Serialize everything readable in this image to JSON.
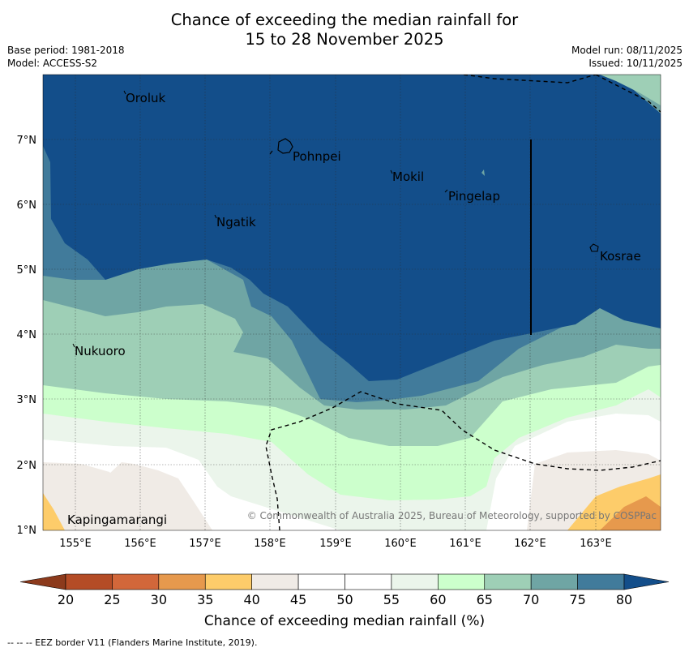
{
  "title_line1": "Chance of exceeding the median rainfall for",
  "title_line2": "15 to 28 November 2025",
  "meta_left": [
    "Base period: 1981-2018",
    "Model: ACCESS-S2"
  ],
  "meta_right": [
    "Model run: 08/11/2025",
    "Issued: 10/11/2025"
  ],
  "lat_labels": [
    "7°N",
    "6°N",
    "5°N",
    "4°N",
    "3°N",
    "2°N",
    "1°N"
  ],
  "lon_labels": [
    "155°E",
    "156°E",
    "157°E",
    "158°E",
    "159°E",
    "160°E",
    "161°E",
    "162°E",
    "163°E"
  ],
  "places": [
    "Oroluk",
    "Pohnpei",
    "Mokil",
    "Pingelap",
    "Ngatik",
    "Kosrae",
    "Nukuoro",
    "Kapingamarangi"
  ],
  "copyright": "© Commonwealth of Australia 2025, Bureau of Meteorology, supported by COSPPac",
  "colorbar_ticks": [
    "20",
    "25",
    "30",
    "35",
    "40",
    "45",
    "50",
    "55",
    "60",
    "65",
    "70",
    "75",
    "80"
  ],
  "colorbar_title": "Chance of exceeding median rainfall (%)",
  "colorbar_colors": [
    "#8c3a1c",
    "#b44c26",
    "#d2673a",
    "#e6994d",
    "#fdcc6a",
    "#f0ebe6",
    "#ffffff",
    "#ffffff",
    "#ebf5eb",
    "#ccffcc",
    "#9ecfb6",
    "#6fa5a4",
    "#417b9b",
    "#134e8a"
  ],
  "footnote": "--  --  -- EEZ border V11 (Flanders Marine Institute, 2019)."
}
